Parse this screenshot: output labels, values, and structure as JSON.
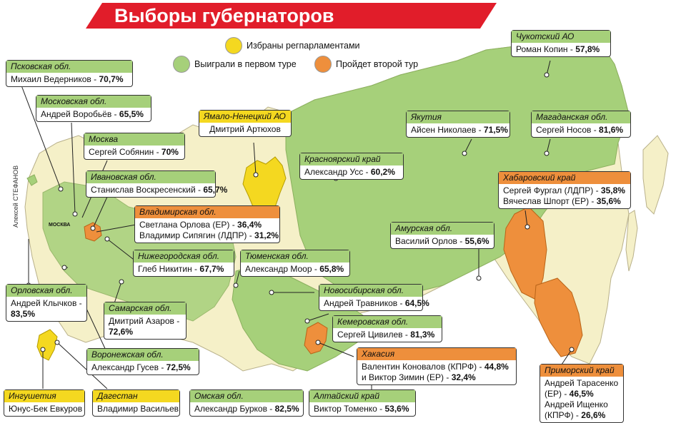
{
  "title": "Выборы губернаторов",
  "author": "Алексей СТЕФАНОВ",
  "moscow_marker": "МОСКВА",
  "colors": {
    "banner": "#e11d2a",
    "appointed": "#f4d820",
    "first_round": "#a6d07a",
    "second_round": "#ee8f3c",
    "other_region": "#f5f0c8",
    "sea": "#ffffff"
  },
  "legend": [
    {
      "label": "Избраны регпарламентами",
      "color": "#f4d820"
    },
    {
      "label": "Выиграли в первом туре",
      "color": "#a6d07a"
    },
    {
      "label": "Пройдет второй тур",
      "color": "#ee8f3c"
    }
  ],
  "regions": [
    {
      "id": "pskov",
      "header": "Псковская обл.",
      "lines": [
        {
          "name": "Михаил Ведерников - ",
          "pct": "70,7%"
        }
      ],
      "status": "green"
    },
    {
      "id": "moscow_obl",
      "header": "Московская обл.",
      "lines": [
        {
          "name": "Андрей Воробьёв - ",
          "pct": "65,5%"
        }
      ],
      "status": "green"
    },
    {
      "id": "moscow",
      "header": "Москва",
      "lines": [
        {
          "name": "Сергей Собянин - ",
          "pct": "70%"
        }
      ],
      "status": "green"
    },
    {
      "id": "ivanovo",
      "header": "Ивановская обл.",
      "lines": [
        {
          "name": "Станислав Воскресенский - ",
          "pct": "65,7%"
        }
      ],
      "status": "green"
    },
    {
      "id": "vladimir",
      "header": "Владимирская обл.",
      "lines": [
        {
          "name": "Светлана Орлова (ЕР) - ",
          "pct": "36,4%"
        },
        {
          "name": "Владимир Сипягин (ЛДПР) - ",
          "pct": "31,2%"
        }
      ],
      "status": "orange"
    },
    {
      "id": "nizhny",
      "header": "Нижегородская обл.",
      "lines": [
        {
          "name": "Глеб Никитин - ",
          "pct": "67,7%"
        }
      ],
      "status": "green"
    },
    {
      "id": "orel",
      "header": "Орловская обл.",
      "lines": [
        {
          "name": "Андрей Клычков -",
          "pct": ""
        },
        {
          "name": "",
          "pct": "83,5%"
        }
      ],
      "status": "green"
    },
    {
      "id": "samara",
      "header": "Самарская обл.",
      "lines": [
        {
          "name": "Дмитрий Азаров -",
          "pct": ""
        },
        {
          "name": "",
          "pct": "72,6%"
        }
      ],
      "status": "green"
    },
    {
      "id": "voronezh",
      "header": "Воронежская обл.",
      "lines": [
        {
          "name": "Александр Гусев - ",
          "pct": "72,5%"
        }
      ],
      "status": "green"
    },
    {
      "id": "ingushetia",
      "header": "Ингушетия",
      "lines": [
        {
          "name": "Юнус-Бек Евкуров",
          "pct": ""
        }
      ],
      "status": "yellow"
    },
    {
      "id": "dagestan",
      "header": "Дагестан",
      "lines": [
        {
          "name": "Владимир Васильев",
          "pct": ""
        }
      ],
      "status": "yellow"
    },
    {
      "id": "yamal",
      "header": "Ямало-Ненецкий АО",
      "lines": [
        {
          "name": "Дмитрий Артюхов",
          "pct": ""
        }
      ],
      "status": "yellow"
    },
    {
      "id": "tyumen",
      "header": "Тюменская обл.",
      "lines": [
        {
          "name": "Александр Моор - ",
          "pct": "65,8%"
        }
      ],
      "status": "green"
    },
    {
      "id": "krasnoyarsk",
      "header": "Красноярский край",
      "lines": [
        {
          "name": "Александр Усс - ",
          "pct": "60,2%"
        }
      ],
      "status": "green"
    },
    {
      "id": "novosibirsk",
      "header": "Новосибирская обл.",
      "lines": [
        {
          "name": "Андрей Травников - ",
          "pct": "64,5%"
        }
      ],
      "status": "green"
    },
    {
      "id": "kemerovo",
      "header": "Кемеровская обл.",
      "lines": [
        {
          "name": "Сергей Цивилев - ",
          "pct": "81,3%"
        }
      ],
      "status": "green"
    },
    {
      "id": "khakassia",
      "header": "Хакасия",
      "lines": [
        {
          "name": "Валентин Коновалов (КПРФ) - ",
          "pct": "44,8%"
        },
        {
          "name": "и Виктор Зимин (ЕР) - ",
          "pct": "32,4%"
        }
      ],
      "status": "orange"
    },
    {
      "id": "omsk",
      "header": "Омская обл.",
      "lines": [
        {
          "name": "Александр Бурков - ",
          "pct": "82,5%"
        }
      ],
      "status": "green"
    },
    {
      "id": "altai",
      "header": "Алтайский край",
      "lines": [
        {
          "name": "Виктор Томенко - ",
          "pct": "53,6%"
        }
      ],
      "status": "green"
    },
    {
      "id": "yakutia",
      "header": "Якутия",
      "lines": [
        {
          "name": "Айсен Николаев - ",
          "pct": "71,5%"
        }
      ],
      "status": "green"
    },
    {
      "id": "amur",
      "header": "Амурская обл.",
      "lines": [
        {
          "name": "Василий Орлов - ",
          "pct": "55,6%"
        }
      ],
      "status": "green"
    },
    {
      "id": "chukotka",
      "header": "Чукотский АО",
      "lines": [
        {
          "name": "Роман Копин - ",
          "pct": "57,8%"
        }
      ],
      "status": "green"
    },
    {
      "id": "magadan",
      "header": "Магаданская обл.",
      "lines": [
        {
          "name": "Сергей Носов - ",
          "pct": "81,6%"
        }
      ],
      "status": "green"
    },
    {
      "id": "khabarovsk",
      "header": "Хабаровский край",
      "lines": [
        {
          "name": "Сергей Фургал (ЛДПР) - ",
          "pct": "35,8%"
        },
        {
          "name": "Вячеслав Шпорт (ЕР) - ",
          "pct": "35,6%"
        }
      ],
      "status": "orange"
    },
    {
      "id": "primorye",
      "header": "Приморский край",
      "lines": [
        {
          "name": "Андрей Тарасенко",
          "pct": ""
        },
        {
          "name": "(ЕР) - ",
          "pct": "46,5%"
        },
        {
          "name": "Андрей Ищенко",
          "pct": ""
        },
        {
          "name": "(КПРФ) - ",
          "pct": "26,6%"
        }
      ],
      "status": "orange"
    }
  ]
}
